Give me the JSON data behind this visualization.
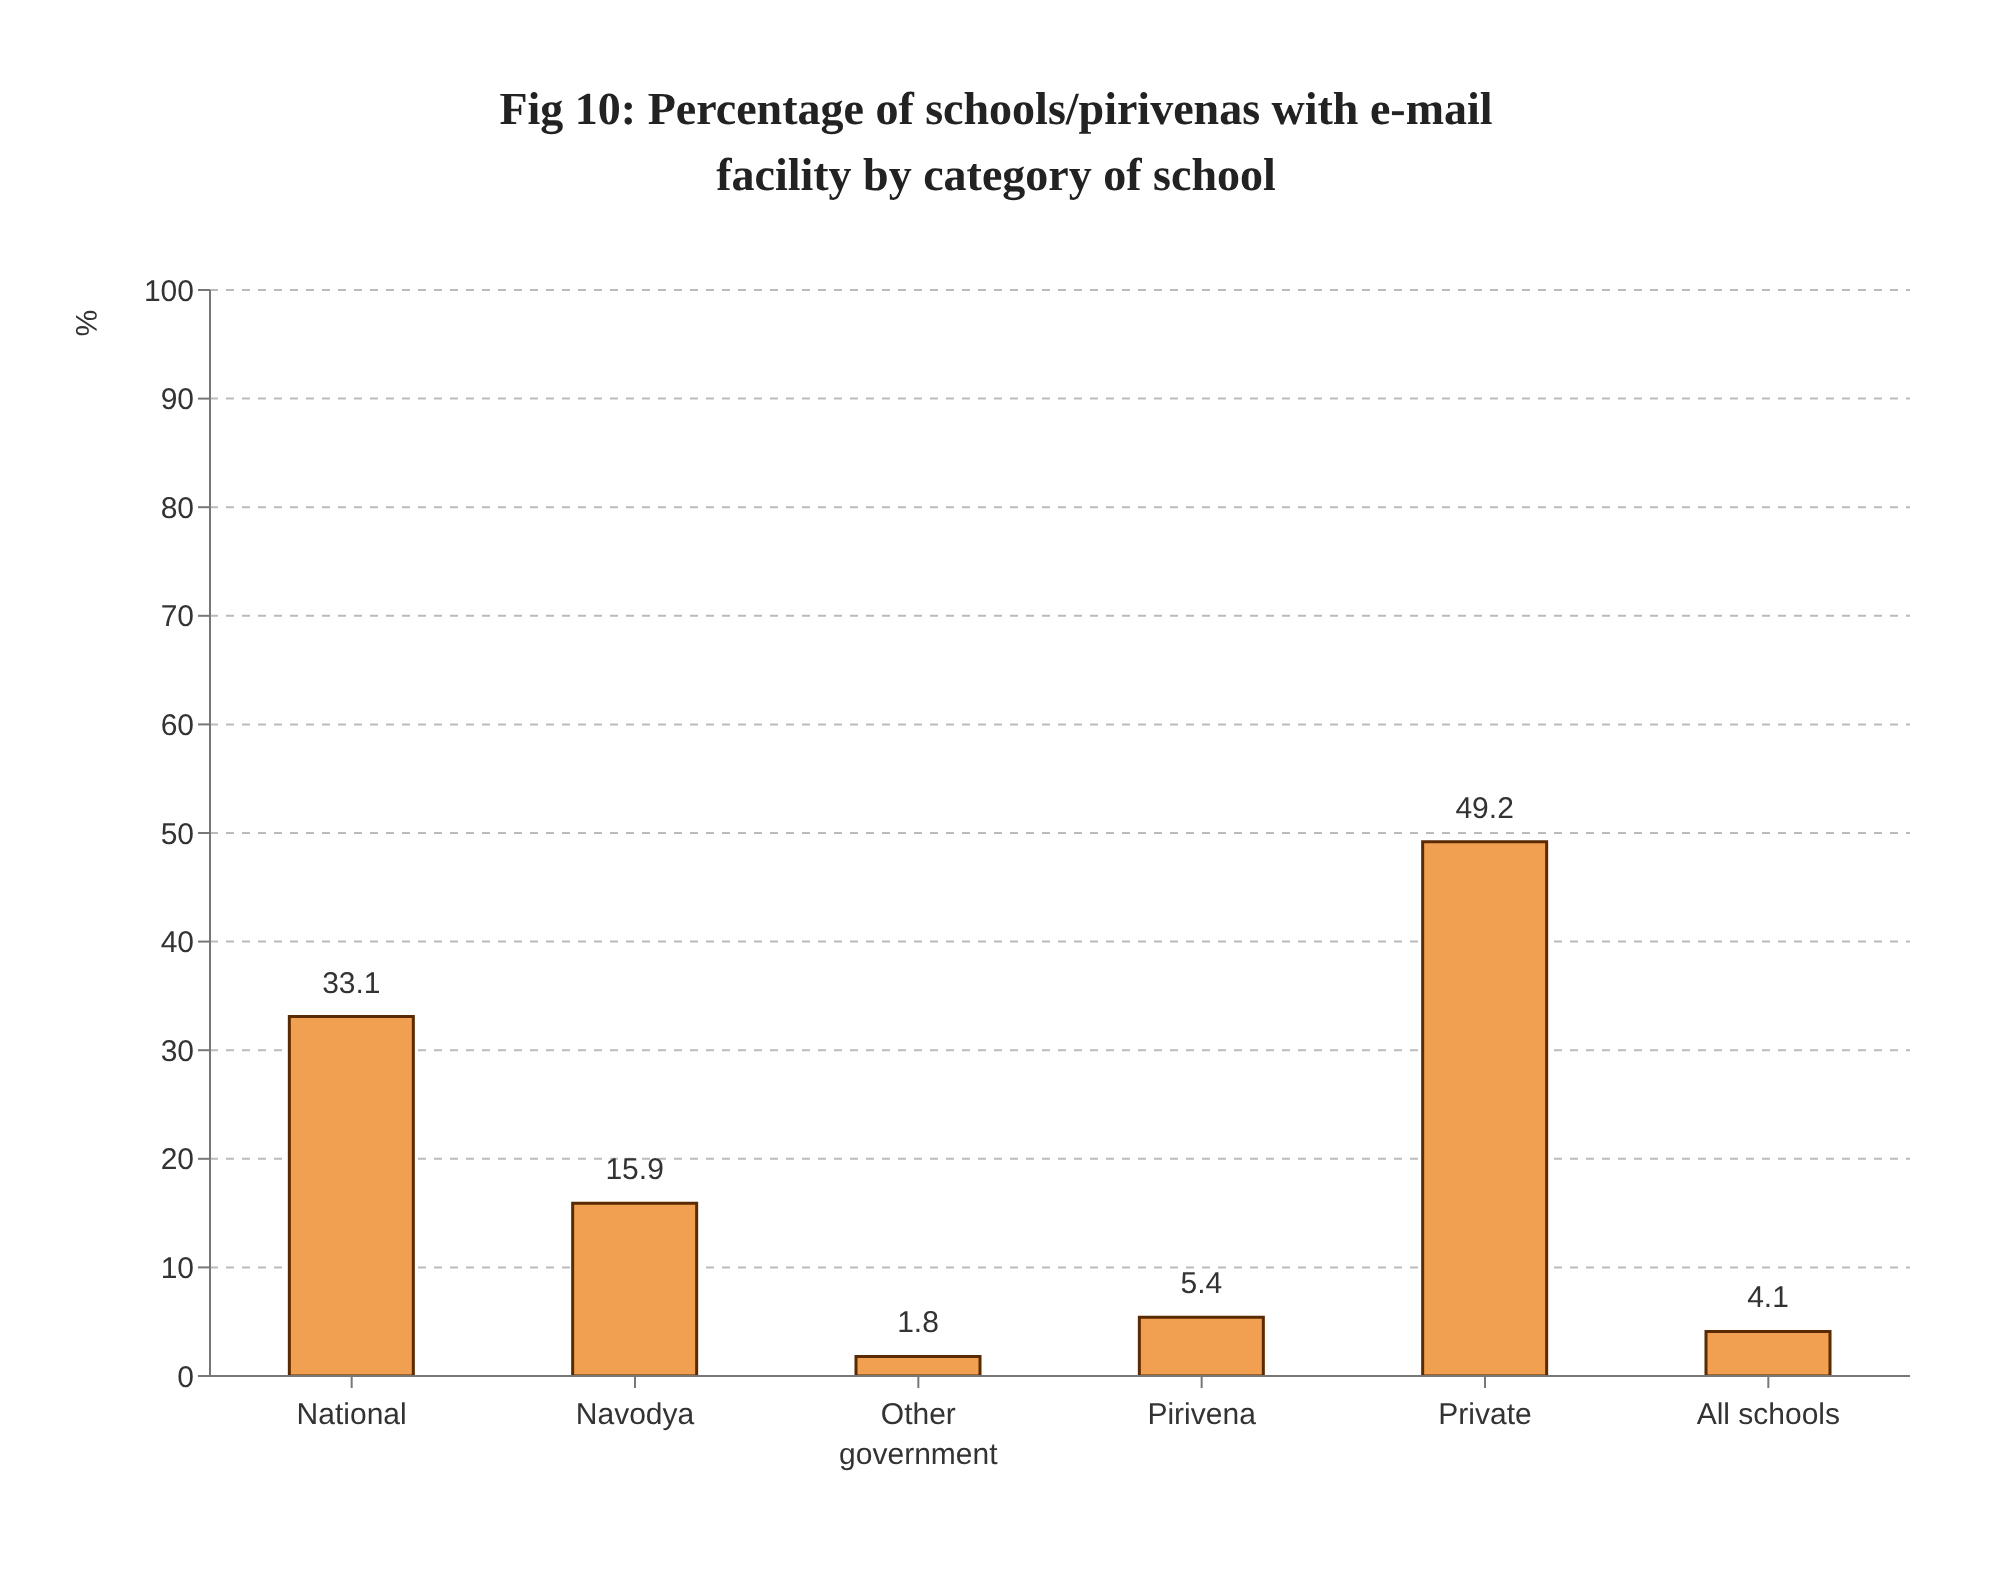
{
  "chart_data": {
    "type": "bar",
    "title": "Fig 10: Percentage of schools/pirivenas with e-mail facility by category of school",
    "ylabel": "%",
    "categories": [
      "National",
      "Navodya",
      "Other government",
      "Pirivena",
      "Private",
      "All schools"
    ],
    "values": [
      33.1,
      15.9,
      1.8,
      5.4,
      49.2,
      4.1
    ],
    "color": "#f0a050",
    "ylim": [
      0,
      100
    ],
    "yticks": [
      0,
      10,
      20,
      30,
      40,
      50,
      60,
      70,
      80,
      90,
      100
    ],
    "grid": "y",
    "data_labels": true
  }
}
